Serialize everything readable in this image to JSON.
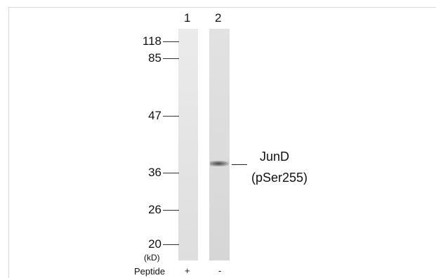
{
  "lanes": [
    {
      "number": "1",
      "peptide_sign": "+"
    },
    {
      "number": "2",
      "peptide_sign": "-"
    }
  ],
  "markers": [
    "118",
    "85",
    "47",
    "36",
    "26",
    "20"
  ],
  "unit": "(kD)",
  "protein": {
    "name": "JunD",
    "modification": "(pSer255)"
  },
  "peptide_label": "Peptide"
}
